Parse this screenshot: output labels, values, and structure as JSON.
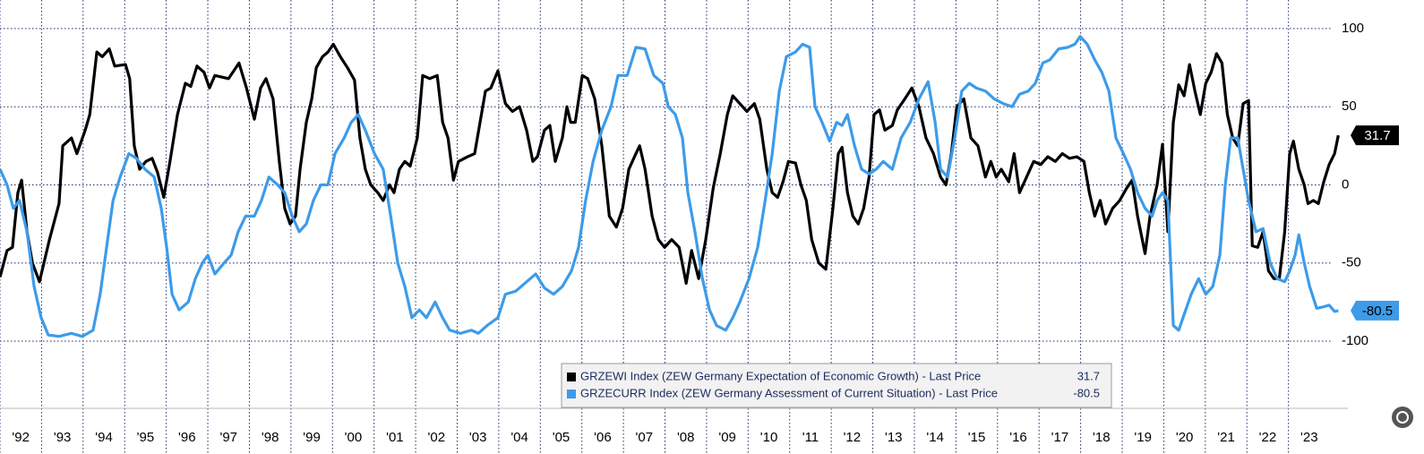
{
  "chart_data": {
    "type": "line",
    "xlim": [
      1992,
      2024.43
    ],
    "ylim": [
      -143,
      118.3
    ],
    "yticks": [
      -100,
      -50,
      0,
      50,
      100
    ],
    "xticks": [
      {
        "value": 1992,
        "label": "'92"
      },
      {
        "value": 1993,
        "label": "'93"
      },
      {
        "value": 1994,
        "label": "'94"
      },
      {
        "value": 1995,
        "label": "'95"
      },
      {
        "value": 1996,
        "label": "'96"
      },
      {
        "value": 1997,
        "label": "'97"
      },
      {
        "value": 1998,
        "label": "'98"
      },
      {
        "value": 1999,
        "label": "'99"
      },
      {
        "value": 2000,
        "label": "'00"
      },
      {
        "value": 2001,
        "label": "'01"
      },
      {
        "value": 2002,
        "label": "'02"
      },
      {
        "value": 2003,
        "label": "'03"
      },
      {
        "value": 2004,
        "label": "'04"
      },
      {
        "value": 2005,
        "label": "'05"
      },
      {
        "value": 2006,
        "label": "'06"
      },
      {
        "value": 2007,
        "label": "'07"
      },
      {
        "value": 2008,
        "label": "'08"
      },
      {
        "value": 2009,
        "label": "'09"
      },
      {
        "value": 2010,
        "label": "'10"
      },
      {
        "value": 2011,
        "label": "'11"
      },
      {
        "value": 2012,
        "label": "'12"
      },
      {
        "value": 2013,
        "label": "'13"
      },
      {
        "value": 2014,
        "label": "'14"
      },
      {
        "value": 2015,
        "label": "'15"
      },
      {
        "value": 2016,
        "label": "'16"
      },
      {
        "value": 2017,
        "label": "'17"
      },
      {
        "value": 2018,
        "label": "'18"
      },
      {
        "value": 2019,
        "label": "'19"
      },
      {
        "value": 2020,
        "label": "'20"
      },
      {
        "value": 2021,
        "label": "'21"
      },
      {
        "value": 2022,
        "label": "'22"
      },
      {
        "value": 2023,
        "label": "'23"
      }
    ],
    "grid": true,
    "legend": "bottom",
    "series": [
      {
        "name": "GRZEWI Index (ZEW Germany Expectation of Economic Growth) - Last Price",
        "color": "#000000",
        "x": [
          1992.0,
          1992.17,
          1992.3,
          1992.43,
          1992.52,
          1992.65,
          1992.78,
          1992.95,
          1993.19,
          1993.42,
          1993.51,
          1993.72,
          1993.85,
          1994.05,
          1994.16,
          1994.33,
          1994.46,
          1994.63,
          1994.76,
          1995.02,
          1995.12,
          1995.23,
          1995.36,
          1995.51,
          1995.66,
          1995.79,
          1995.94,
          1996.09,
          1996.27,
          1996.46,
          1996.59,
          1996.74,
          1996.91,
          1997.04,
          1997.17,
          1997.5,
          1997.75,
          1997.93,
          1998.12,
          1998.27,
          1998.4,
          1998.57,
          1998.72,
          1998.85,
          1998.98,
          1999.11,
          1999.22,
          1999.37,
          1999.5,
          1999.61,
          1999.76,
          1999.89,
          2000.02,
          2000.19,
          2000.36,
          2000.53,
          2000.66,
          2000.79,
          2000.92,
          2001.09,
          2001.22,
          2001.37,
          2001.48,
          2001.61,
          2001.74,
          2001.87,
          2002.04,
          2002.17,
          2002.34,
          2002.52,
          2002.65,
          2002.78,
          2002.91,
          2003.03,
          2003.25,
          2003.42,
          2003.55,
          2003.68,
          2003.81,
          2003.98,
          2004.16,
          2004.33,
          2004.5,
          2004.67,
          2004.82,
          2004.93,
          2005.1,
          2005.23,
          2005.36,
          2005.53,
          2005.64,
          2005.73,
          2005.84,
          2006.01,
          2006.14,
          2006.31,
          2006.48,
          2006.66,
          2006.83,
          2006.98,
          2007.13,
          2007.3,
          2007.39,
          2007.52,
          2007.69,
          2007.84,
          2007.99,
          2008.16,
          2008.34,
          2008.51,
          2008.64,
          2008.81,
          2008.98,
          2009.16,
          2009.33,
          2009.5,
          2009.63,
          2009.8,
          2009.97,
          2010.15,
          2010.28,
          2010.45,
          2010.58,
          2010.71,
          2010.84,
          2010.97,
          2011.14,
          2011.27,
          2011.4,
          2011.53,
          2011.7,
          2011.87,
          2012.04,
          2012.17,
          2012.26,
          2012.39,
          2012.52,
          2012.65,
          2012.78,
          2012.91,
          2013.03,
          2013.16,
          2013.29,
          2013.47,
          2013.59,
          2013.77,
          2013.94,
          2014.11,
          2014.28,
          2014.46,
          2014.63,
          2014.76,
          2014.89,
          2015.02,
          2015.19,
          2015.36,
          2015.53,
          2015.71,
          2015.84,
          2015.97,
          2016.09,
          2016.27,
          2016.4,
          2016.53,
          2016.7,
          2016.87,
          2017.04,
          2017.21,
          2017.39,
          2017.56,
          2017.73,
          2017.91,
          2018.08,
          2018.21,
          2018.34,
          2018.47,
          2018.6,
          2018.77,
          2018.94,
          2019.11,
          2019.24,
          2019.37,
          2019.55,
          2019.67,
          2019.84,
          2019.97,
          2020.1,
          2020.23,
          2020.36,
          2020.49,
          2020.62,
          2020.75,
          2020.88,
          2021.01,
          2021.14,
          2021.27,
          2021.4,
          2021.53,
          2021.66,
          2021.78,
          2021.91,
          2022.04,
          2022.13,
          2022.26,
          2022.39,
          2022.52,
          2022.65,
          2022.78,
          2022.91,
          2023.03,
          2023.12,
          2023.25,
          2023.38,
          2023.47,
          2023.6,
          2023.72,
          2023.85,
          2023.98,
          2024.11,
          2024.2
        ],
        "values": [
          -59,
          -42,
          -40,
          -5,
          3,
          -30,
          -50,
          -62,
          -35,
          -12,
          25,
          30,
          20,
          35,
          45,
          85,
          82,
          87,
          76,
          77,
          68,
          25,
          10,
          15,
          17,
          8,
          -8,
          15,
          45,
          65,
          63,
          76,
          72,
          62,
          70,
          68,
          78,
          62,
          42,
          62,
          68,
          55,
          15,
          -15,
          -25,
          -20,
          10,
          40,
          55,
          75,
          82,
          85,
          90,
          82,
          75,
          67,
          30,
          10,
          0,
          -5,
          -10,
          0,
          -5,
          10,
          15,
          12,
          30,
          70,
          68,
          70,
          40,
          30,
          3,
          15,
          18,
          20,
          40,
          60,
          62,
          73,
          52,
          47,
          50,
          35,
          15,
          18,
          35,
          38,
          15,
          30,
          50,
          40,
          40,
          70,
          68,
          55,
          25,
          -20,
          -27,
          -15,
          10,
          20,
          25,
          10,
          -20,
          -35,
          -40,
          -35,
          -40,
          -63,
          -42,
          -60,
          -35,
          -2,
          20,
          45,
          57,
          52,
          47,
          52,
          42,
          10,
          -5,
          -8,
          2,
          15,
          14,
          0,
          -10,
          -35,
          -50,
          -54,
          -15,
          20,
          24,
          -5,
          -20,
          -25,
          -15,
          5,
          45,
          48,
          35,
          38,
          48,
          55,
          62,
          50,
          30,
          20,
          5,
          0,
          20,
          50,
          55,
          30,
          25,
          5,
          15,
          5,
          10,
          2,
          20,
          -5,
          5,
          15,
          13,
          18,
          15,
          20,
          17,
          18,
          15,
          -5,
          -20,
          -10,
          -25,
          -15,
          -10,
          -2,
          3,
          -20,
          -44,
          -20,
          0,
          26,
          -30,
          40,
          64,
          57,
          77,
          60,
          45,
          65,
          72,
          84,
          78,
          45,
          30,
          25,
          52,
          54,
          -39,
          -40,
          -30,
          -55,
          -60,
          -60,
          -30,
          20,
          28,
          10,
          0,
          -12,
          -10,
          -12,
          2,
          13,
          20,
          31.7
        ]
      },
      {
        "name": "GRZECURR Index (ZEW Germany Assessment of Current Situation) - Last Price",
        "color": "#3d9be9",
        "x": [
          1992.0,
          1992.17,
          1992.32,
          1992.47,
          1992.65,
          1992.82,
          1992.99,
          1993.16,
          1993.42,
          1993.72,
          1993.98,
          1994.24,
          1994.41,
          1994.59,
          1994.72,
          1994.89,
          1995.1,
          1995.28,
          1995.49,
          1995.71,
          1995.88,
          1996.01,
          1996.14,
          1996.31,
          1996.53,
          1996.7,
          1996.87,
          1997.0,
          1997.17,
          1997.39,
          1997.56,
          1997.73,
          1997.91,
          1998.12,
          1998.29,
          1998.47,
          1998.68,
          1998.85,
          1999.03,
          1999.2,
          1999.37,
          1999.54,
          1999.72,
          1999.89,
          2000.06,
          2000.28,
          2000.45,
          2000.62,
          2000.79,
          2001.01,
          2001.22,
          2001.4,
          2001.57,
          2001.74,
          2001.91,
          2002.09,
          2002.26,
          2002.47,
          2002.65,
          2002.82,
          2003.08,
          2003.34,
          2003.51,
          2003.72,
          2003.98,
          2004.16,
          2004.41,
          2004.67,
          2004.89,
          2005.1,
          2005.32,
          2005.53,
          2005.75,
          2005.92,
          2006.09,
          2006.27,
          2006.48,
          2006.7,
          2006.87,
          2007.09,
          2007.3,
          2007.52,
          2007.73,
          2007.95,
          2008.08,
          2008.25,
          2008.42,
          2008.55,
          2008.72,
          2008.9,
          2009.07,
          2009.24,
          2009.46,
          2009.63,
          2009.8,
          2010.02,
          2010.23,
          2010.41,
          2010.58,
          2010.75,
          2010.92,
          2011.14,
          2011.31,
          2011.48,
          2011.61,
          2011.78,
          2011.96,
          2012.13,
          2012.26,
          2012.39,
          2012.56,
          2012.73,
          2012.91,
          2013.08,
          2013.25,
          2013.47,
          2013.68,
          2013.9,
          2014.11,
          2014.33,
          2014.5,
          2014.63,
          2014.8,
          2014.97,
          2015.14,
          2015.32,
          2015.49,
          2015.71,
          2015.92,
          2016.14,
          2016.35,
          2016.53,
          2016.74,
          2016.91,
          2017.09,
          2017.26,
          2017.47,
          2017.69,
          2017.86,
          2017.99,
          2018.16,
          2018.34,
          2018.51,
          2018.68,
          2018.85,
          2019.03,
          2019.2,
          2019.37,
          2019.55,
          2019.72,
          2019.84,
          2019.97,
          2020.1,
          2020.23,
          2020.36,
          2020.49,
          2020.66,
          2020.84,
          2021.01,
          2021.18,
          2021.35,
          2021.48,
          2021.61,
          2021.78,
          2021.91,
          2022.04,
          2022.22,
          2022.39,
          2022.56,
          2022.73,
          2022.91,
          2023.03,
          2023.16,
          2023.25,
          2023.38,
          2023.51,
          2023.68,
          2023.85,
          2023.98,
          2024.11,
          2024.2
        ],
        "values": [
          10,
          0,
          -15,
          -10,
          -30,
          -65,
          -85,
          -96,
          -97,
          -95,
          -97,
          -93,
          -70,
          -35,
          -10,
          5,
          20,
          17,
          10,
          5,
          -15,
          -40,
          -70,
          -80,
          -75,
          -60,
          -50,
          -45,
          -57,
          -50,
          -45,
          -30,
          -20,
          -20,
          -10,
          5,
          0,
          -5,
          -20,
          -30,
          -25,
          -10,
          0,
          0,
          20,
          30,
          40,
          45,
          35,
          20,
          10,
          -20,
          -50,
          -65,
          -85,
          -80,
          -85,
          -75,
          -85,
          -93,
          -95,
          -93,
          -95,
          -90,
          -85,
          -70,
          -68,
          -62,
          -57,
          -66,
          -70,
          -65,
          -55,
          -40,
          -10,
          15,
          35,
          50,
          70,
          70,
          88,
          87,
          70,
          65,
          50,
          45,
          30,
          -5,
          -30,
          -60,
          -80,
          -90,
          -93,
          -85,
          -75,
          -60,
          -40,
          -10,
          20,
          60,
          82,
          85,
          90,
          88,
          50,
          40,
          28,
          40,
          38,
          45,
          25,
          10,
          7,
          10,
          15,
          10,
          30,
          40,
          55,
          66,
          40,
          10,
          5,
          30,
          60,
          65,
          62,
          60,
          55,
          52,
          50,
          58,
          60,
          65,
          78,
          80,
          87,
          88,
          90,
          95,
          90,
          80,
          72,
          60,
          30,
          20,
          10,
          -5,
          -15,
          -20,
          -10,
          -5,
          -10,
          -90,
          -93,
          -83,
          -70,
          -60,
          -70,
          -65,
          -45,
          0,
          30,
          30,
          10,
          -10,
          -30,
          -28,
          -50,
          -60,
          -62,
          -55,
          -45,
          -32,
          -50,
          -65,
          -79,
          -78,
          -77,
          -81,
          -80.5
        ]
      }
    ]
  }
}
